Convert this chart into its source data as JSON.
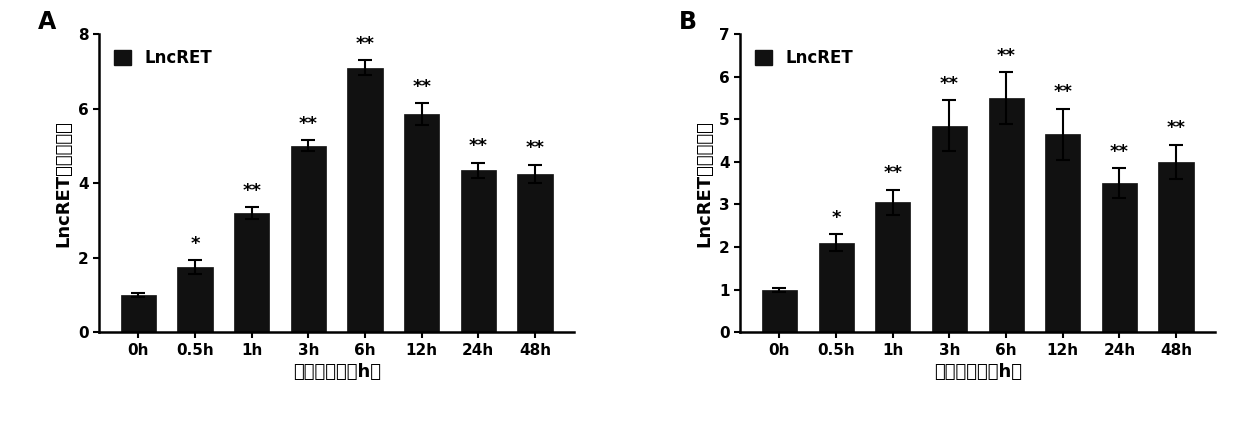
{
  "panel_A": {
    "label": "A",
    "categories": [
      "0h",
      "0.5h",
      "1h",
      "3h",
      "6h",
      "12h",
      "24h",
      "48h"
    ],
    "values": [
      1.0,
      1.75,
      3.2,
      5.0,
      7.1,
      5.85,
      4.35,
      4.25
    ],
    "errors": [
      0.05,
      0.18,
      0.15,
      0.15,
      0.2,
      0.3,
      0.2,
      0.25
    ],
    "sig_labels": [
      "",
      "*",
      "**",
      "**",
      "**",
      "**",
      "**",
      "**"
    ],
    "ylim": [
      0,
      8
    ],
    "yticks": [
      0,
      2,
      4,
      6,
      8
    ],
    "ylabel": "LncRET相对表达量",
    "xlabel": "辐射后时间（h）"
  },
  "panel_B": {
    "label": "B",
    "categories": [
      "0h",
      "0.5h",
      "1h",
      "3h",
      "6h",
      "12h",
      "24h",
      "48h"
    ],
    "values": [
      1.0,
      2.1,
      3.05,
      4.85,
      5.5,
      4.65,
      3.5,
      4.0
    ],
    "errors": [
      0.05,
      0.2,
      0.3,
      0.6,
      0.6,
      0.6,
      0.35,
      0.4
    ],
    "sig_labels": [
      "",
      "*",
      "**",
      "**",
      "**",
      "**",
      "**",
      "**"
    ],
    "ylim": [
      0,
      7
    ],
    "yticks": [
      0,
      1,
      2,
      3,
      4,
      5,
      6,
      7
    ],
    "ylabel": "LncRET相对表达量",
    "xlabel": "辐射后时间（h）"
  },
  "bar_color": "#111111",
  "legend_label": "LncRET",
  "legend_color": "#111111",
  "background_color": "#ffffff",
  "font_size_ticks": 11,
  "font_size_label": 13,
  "font_size_sig": 13,
  "font_size_panel": 17,
  "bar_width": 0.62
}
